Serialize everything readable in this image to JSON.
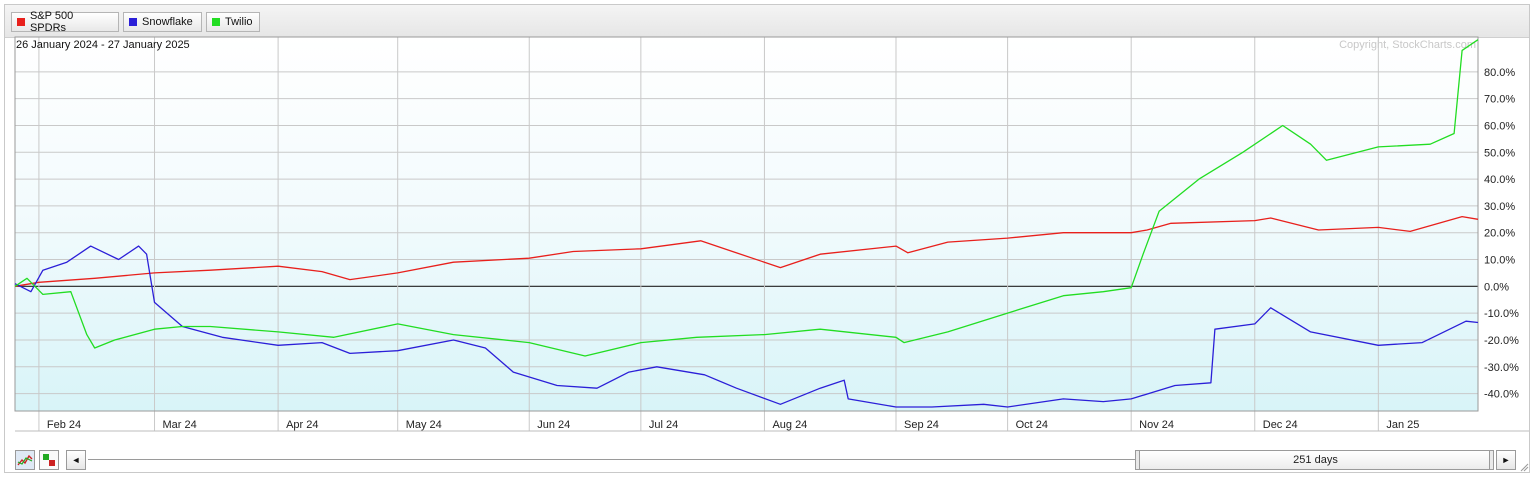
{
  "legend": [
    {
      "label": "S&P 500 SPDRs",
      "color": "#e8201c"
    },
    {
      "label": "Snowflake",
      "color": "#2b1fd8"
    },
    {
      "label": "Twilio",
      "color": "#22dd22"
    }
  ],
  "footer": {
    "range_label": "251 days",
    "left_arrow": "◄",
    "right_arrow": "►"
  },
  "chart_data": {
    "type": "line",
    "subtitle": "26 January 2024 - 27 January 2025",
    "watermark": "Copyright, StockCharts.com",
    "x_tick_labels": [
      "Feb 24",
      "Mar 24",
      "Apr 24",
      "May 24",
      "Jun 24",
      "Jul 24",
      "Aug 24",
      "Sep 24",
      "Oct 24",
      "Nov 24",
      "Dec 24",
      "Jan 25"
    ],
    "x_tick_dates": [
      "2024-02-01",
      "2024-03-01",
      "2024-04-01",
      "2024-05-01",
      "2024-06-03",
      "2024-07-01",
      "2024-08-01",
      "2024-09-03",
      "2024-10-01",
      "2024-11-01",
      "2024-12-02",
      "2025-01-02"
    ],
    "y_tick_labels": [
      "80.0%",
      "70.0%",
      "60.0%",
      "50.0%",
      "40.0%",
      "30.0%",
      "20.0%",
      "10.0%",
      "0.0%",
      "-10.0%",
      "-20.0%",
      "-30.0%",
      "-40.0%"
    ],
    "y_ticks": [
      80,
      70,
      60,
      50,
      40,
      30,
      20,
      10,
      0,
      -10,
      -20,
      -30,
      -40
    ],
    "xlim": [
      "2024-01-26",
      "2025-01-27"
    ],
    "ylim": [
      -46.5,
      93
    ],
    "y_unit": "%",
    "grid": true,
    "legend_position": "top-left",
    "series": [
      {
        "name": "S&P 500 SPDRs",
        "color": "#e8201c",
        "x": [
          "2024-01-26",
          "2024-02-01",
          "2024-02-15",
          "2024-03-01",
          "2024-03-15",
          "2024-04-01",
          "2024-04-12",
          "2024-04-19",
          "2024-05-01",
          "2024-05-15",
          "2024-06-03",
          "2024-06-14",
          "2024-07-01",
          "2024-07-16",
          "2024-07-24",
          "2024-08-05",
          "2024-08-15",
          "2024-09-03",
          "2024-09-06",
          "2024-09-16",
          "2024-10-01",
          "2024-10-15",
          "2024-11-01",
          "2024-11-05",
          "2024-11-11",
          "2024-12-02",
          "2024-12-06",
          "2024-12-18",
          "2025-01-02",
          "2025-01-10",
          "2025-01-23",
          "2025-01-27"
        ],
        "y": [
          0.0,
          1.5,
          3.0,
          5.0,
          6.0,
          7.5,
          5.5,
          2.5,
          5.0,
          9.0,
          10.5,
          13.0,
          14.0,
          17.0,
          13.0,
          7.0,
          12.0,
          15.0,
          12.5,
          16.5,
          18.0,
          20.0,
          20.0,
          21.0,
          23.5,
          24.5,
          25.5,
          21.0,
          22.0,
          20.5,
          26.0,
          25.0
        ]
      },
      {
        "name": "Snowflake",
        "color": "#2b1fd8",
        "x": [
          "2024-01-26",
          "2024-01-30",
          "2024-02-02",
          "2024-02-08",
          "2024-02-14",
          "2024-02-21",
          "2024-02-26",
          "2024-02-28",
          "2024-03-01",
          "2024-03-08",
          "2024-03-18",
          "2024-04-01",
          "2024-04-12",
          "2024-04-19",
          "2024-05-01",
          "2024-05-15",
          "2024-05-23",
          "2024-05-30",
          "2024-06-10",
          "2024-06-20",
          "2024-06-28",
          "2024-07-05",
          "2024-07-17",
          "2024-07-25",
          "2024-08-05",
          "2024-08-15",
          "2024-08-21",
          "2024-08-22",
          "2024-09-03",
          "2024-09-12",
          "2024-09-25",
          "2024-10-01",
          "2024-10-15",
          "2024-10-25",
          "2024-11-01",
          "2024-11-12",
          "2024-11-21",
          "2024-11-22",
          "2024-12-02",
          "2024-12-06",
          "2024-12-16",
          "2025-01-02",
          "2025-01-13",
          "2025-01-24",
          "2025-01-27"
        ],
        "y": [
          1.0,
          -2.0,
          6.0,
          9.0,
          15.0,
          10.0,
          15.0,
          12.0,
          -6.0,
          -15.0,
          -19.0,
          -22.0,
          -21.0,
          -25.0,
          -24.0,
          -20.0,
          -23.0,
          -32.0,
          -37.0,
          -38.0,
          -32.0,
          -30.0,
          -33.0,
          -38.0,
          -44.0,
          -38.0,
          -35.0,
          -42.0,
          -45.0,
          -45.0,
          -44.0,
          -45.0,
          -42.0,
          -43.0,
          -42.0,
          -37.0,
          -36.0,
          -16.0,
          -14.0,
          -8.0,
          -17.0,
          -22.0,
          -21.0,
          -13.0,
          -13.5
        ]
      },
      {
        "name": "Twilio",
        "color": "#22dd22",
        "x": [
          "2024-01-26",
          "2024-01-29",
          "2024-02-02",
          "2024-02-09",
          "2024-02-13",
          "2024-02-15",
          "2024-02-20",
          "2024-03-01",
          "2024-03-08",
          "2024-03-15",
          "2024-04-01",
          "2024-04-15",
          "2024-05-01",
          "2024-05-15",
          "2024-06-03",
          "2024-06-17",
          "2024-07-01",
          "2024-07-15",
          "2024-08-01",
          "2024-08-15",
          "2024-09-03",
          "2024-09-05",
          "2024-09-16",
          "2024-10-01",
          "2024-10-15",
          "2024-10-25",
          "2024-11-01",
          "2024-11-04",
          "2024-11-08",
          "2024-11-18",
          "2024-11-29",
          "2024-12-09",
          "2024-12-16",
          "2024-12-20",
          "2025-01-02",
          "2025-01-15",
          "2025-01-21",
          "2025-01-23",
          "2025-01-27"
        ],
        "y": [
          0.0,
          3.0,
          -3.0,
          -2.0,
          -18.0,
          -23.0,
          -20.0,
          -16.0,
          -15.0,
          -15.0,
          -17.0,
          -19.0,
          -14.0,
          -18.0,
          -21.0,
          -26.0,
          -21.0,
          -19.0,
          -18.0,
          -16.0,
          -19.0,
          -21.0,
          -17.0,
          -10.0,
          -3.5,
          -2.0,
          -0.5,
          12.0,
          28.0,
          40.0,
          50.0,
          60.0,
          53.0,
          47.0,
          52.0,
          53.0,
          57.0,
          88.0,
          92.0
        ]
      }
    ]
  }
}
